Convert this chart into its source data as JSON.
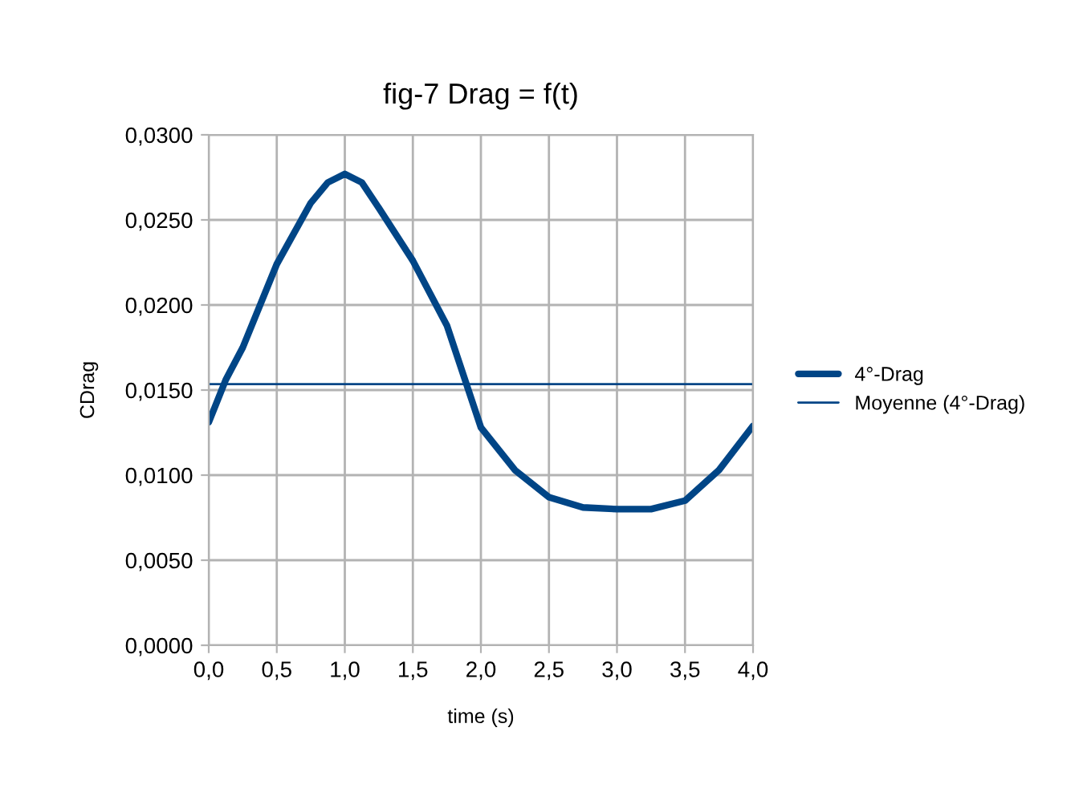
{
  "chart_data": {
    "type": "line",
    "title": "fig-7 Drag = f(t)",
    "xlabel": "time (s)",
    "ylabel": "CDrag",
    "xlim": [
      0,
      4
    ],
    "ylim": [
      0,
      0.03
    ],
    "xticks": [
      {
        "value": 0,
        "label": "0,0"
      },
      {
        "value": 0.5,
        "label": "0,5"
      },
      {
        "value": 1,
        "label": "1,0"
      },
      {
        "value": 1.5,
        "label": "1,5"
      },
      {
        "value": 2,
        "label": "2,0"
      },
      {
        "value": 2.5,
        "label": "2,5"
      },
      {
        "value": 3,
        "label": "3,0"
      },
      {
        "value": 3.5,
        "label": "3,5"
      },
      {
        "value": 4,
        "label": "4,0"
      }
    ],
    "yticks": [
      {
        "value": 0,
        "label": "0,0000"
      },
      {
        "value": 0.005,
        "label": "0,0050"
      },
      {
        "value": 0.01,
        "label": "0,0100"
      },
      {
        "value": 0.015,
        "label": "0,0150"
      },
      {
        "value": 0.02,
        "label": "0,0200"
      },
      {
        "value": 0.025,
        "label": "0,0250"
      },
      {
        "value": 0.03,
        "label": "0,0300"
      }
    ],
    "grid": true,
    "legend": "right",
    "marker": "none",
    "line_style": "solid",
    "series": [
      {
        "name": "4°-Drag",
        "color": "#004586",
        "x": [
          0,
          0.125,
          0.25,
          0.5,
          0.75,
          0.875,
          1,
          1.125,
          1.25,
          1.5,
          1.75,
          2,
          2.25,
          2.5,
          2.75,
          3,
          3.25,
          3.5,
          3.75,
          4
        ],
        "values": [
          0.0131,
          0.0156,
          0.0175,
          0.0224,
          0.026,
          0.0272,
          0.0277,
          0.0272,
          0.0257,
          0.0226,
          0.0188,
          0.0128,
          0.0103,
          0.0087,
          0.0081,
          0.008,
          0.008,
          0.0085,
          0.0103,
          0.0129
        ]
      },
      {
        "name": "Moyenne (4°-Drag)",
        "color": "#004586",
        "x": [
          0,
          4
        ],
        "values": [
          0.01535,
          0.01535
        ]
      }
    ]
  }
}
